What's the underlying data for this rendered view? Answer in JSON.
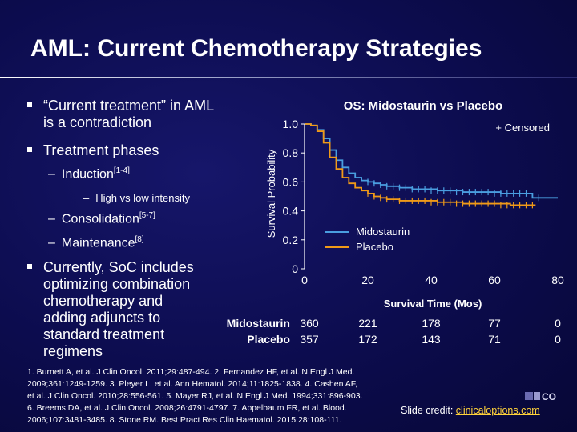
{
  "slide": {
    "title": "AML: Current Chemotherapy Strategies",
    "bullets": {
      "b1_line1": "“Current treatment” in AML",
      "b1_line2": "is a contradiction",
      "b2": "Treatment phases",
      "induction": "Induction",
      "induction_ref": "[1-4]",
      "high_low": "High vs low intensity",
      "consolidation": "Consolidation",
      "consolidation_ref": "[5-7]",
      "maintenance": "Maintenance",
      "maintenance_ref": "[8]",
      "b3_line1": "Currently, SoC includes",
      "b3_line2": "optimizing combination",
      "b3_line3": "chemotherapy and",
      "b3_line4": "adding adjuncts to",
      "b3_line5": "standard treatment",
      "b3_line6": "regimens"
    },
    "footer": {
      "line1": "1. Burnett A, et al. J Clin Oncol. 2011;29:487-494. 2. Fernandez HF, et al. N Engl J Med.",
      "line2": "2009;361:1249-1259. 3. Pleyer L, et al. Ann Hematol. 2014;11:1825-1838. 4. Cashen AF,",
      "line3": "et al. J Clin Oncol. 2010;28:556-561. 5. Mayer RJ, et al. N Engl J Med. 1994;331:896-903.",
      "line4": "6. Breems DA, et al. J Clin Oncol. 2008;26:4791-4797. 7. Appelbaum FR, et al. Blood.",
      "line5": "2006;107:3481-3485. 8. Stone RM. Best Pract Res Clin Haematol. 2015;28:108-111."
    },
    "credit_label": "Slide credit:",
    "credit_link": "clinicaloptions.com",
    "logo_text": "CO"
  },
  "colors": {
    "background": "#0c0c4e",
    "midostaurin": "#4a9ee0",
    "placebo": "#f09a18",
    "link": "#ffd23a"
  },
  "chart_data": {
    "type": "line",
    "title": "OS: Midostaurin vs Placebo",
    "xlabel": "Survival Time (Mos)",
    "ylabel": "Survival Probability",
    "xlim": [
      0,
      80
    ],
    "ylim": [
      0,
      1.0
    ],
    "xticks": [
      0,
      20,
      40,
      60,
      80
    ],
    "yticks": [
      0,
      0.2,
      0.4,
      0.6,
      0.8,
      1.0
    ],
    "ytick_labels": [
      "0",
      "0.2",
      "0.4",
      "0.6",
      "0.8",
      "1.0"
    ],
    "censor_note": "+ Censored",
    "series": [
      {
        "name": "Midostaurin",
        "x": [
          0,
          2,
          4,
          6,
          8,
          10,
          12,
          14,
          16,
          18,
          20,
          22,
          24,
          26,
          28,
          30,
          34,
          38,
          42,
          46,
          50,
          54,
          58,
          62,
          66,
          70,
          72,
          75,
          80
        ],
        "y": [
          1.0,
          0.99,
          0.96,
          0.9,
          0.82,
          0.75,
          0.7,
          0.66,
          0.63,
          0.61,
          0.6,
          0.59,
          0.58,
          0.57,
          0.57,
          0.56,
          0.55,
          0.55,
          0.54,
          0.54,
          0.53,
          0.53,
          0.53,
          0.52,
          0.52,
          0.52,
          0.49,
          0.49,
          0.49
        ],
        "censored": [
          [
            20,
            0.6
          ],
          [
            22,
            0.59
          ],
          [
            24,
            0.58
          ],
          [
            26,
            0.57
          ],
          [
            28,
            0.57
          ],
          [
            30,
            0.56
          ],
          [
            32,
            0.56
          ],
          [
            34,
            0.55
          ],
          [
            36,
            0.55
          ],
          [
            38,
            0.55
          ],
          [
            40,
            0.54
          ],
          [
            42,
            0.54
          ],
          [
            44,
            0.54
          ],
          [
            46,
            0.54
          ],
          [
            48,
            0.53
          ],
          [
            50,
            0.53
          ],
          [
            52,
            0.53
          ],
          [
            54,
            0.53
          ],
          [
            56,
            0.53
          ],
          [
            58,
            0.53
          ],
          [
            60,
            0.52
          ],
          [
            62,
            0.52
          ],
          [
            64,
            0.52
          ],
          [
            66,
            0.52
          ],
          [
            68,
            0.52
          ],
          [
            70,
            0.52
          ],
          [
            74,
            0.49
          ]
        ]
      },
      {
        "name": "Placebo",
        "x": [
          0,
          2,
          4,
          6,
          8,
          10,
          12,
          14,
          16,
          18,
          20,
          22,
          24,
          26,
          28,
          30,
          34,
          38,
          42,
          46,
          50,
          55,
          60,
          65,
          70,
          73
        ],
        "y": [
          1.0,
          0.99,
          0.95,
          0.87,
          0.77,
          0.69,
          0.63,
          0.59,
          0.56,
          0.54,
          0.52,
          0.5,
          0.49,
          0.48,
          0.48,
          0.47,
          0.47,
          0.47,
          0.46,
          0.46,
          0.45,
          0.45,
          0.45,
          0.44,
          0.44,
          0.44
        ],
        "censored": [
          [
            20,
            0.52
          ],
          [
            22,
            0.5
          ],
          [
            24,
            0.49
          ],
          [
            26,
            0.48
          ],
          [
            28,
            0.48
          ],
          [
            30,
            0.47
          ],
          [
            32,
            0.47
          ],
          [
            34,
            0.47
          ],
          [
            36,
            0.47
          ],
          [
            38,
            0.47
          ],
          [
            40,
            0.46
          ],
          [
            42,
            0.46
          ],
          [
            44,
            0.46
          ],
          [
            46,
            0.46
          ],
          [
            48,
            0.45
          ],
          [
            50,
            0.45
          ],
          [
            52,
            0.45
          ],
          [
            54,
            0.45
          ],
          [
            56,
            0.45
          ],
          [
            58,
            0.45
          ],
          [
            60,
            0.45
          ],
          [
            62,
            0.44
          ],
          [
            64,
            0.44
          ],
          [
            66,
            0.44
          ],
          [
            68,
            0.44
          ],
          [
            70,
            0.44
          ],
          [
            72,
            0.44
          ]
        ]
      }
    ],
    "legend_position": "inside-bottom-center",
    "risk_table": {
      "rows": [
        {
          "label": "Midostaurin",
          "values": [
            "360",
            "221",
            "178",
            "77",
            "0"
          ]
        },
        {
          "label": "Placebo",
          "values": [
            "357",
            "172",
            "143",
            "71",
            "0"
          ]
        }
      ]
    }
  }
}
